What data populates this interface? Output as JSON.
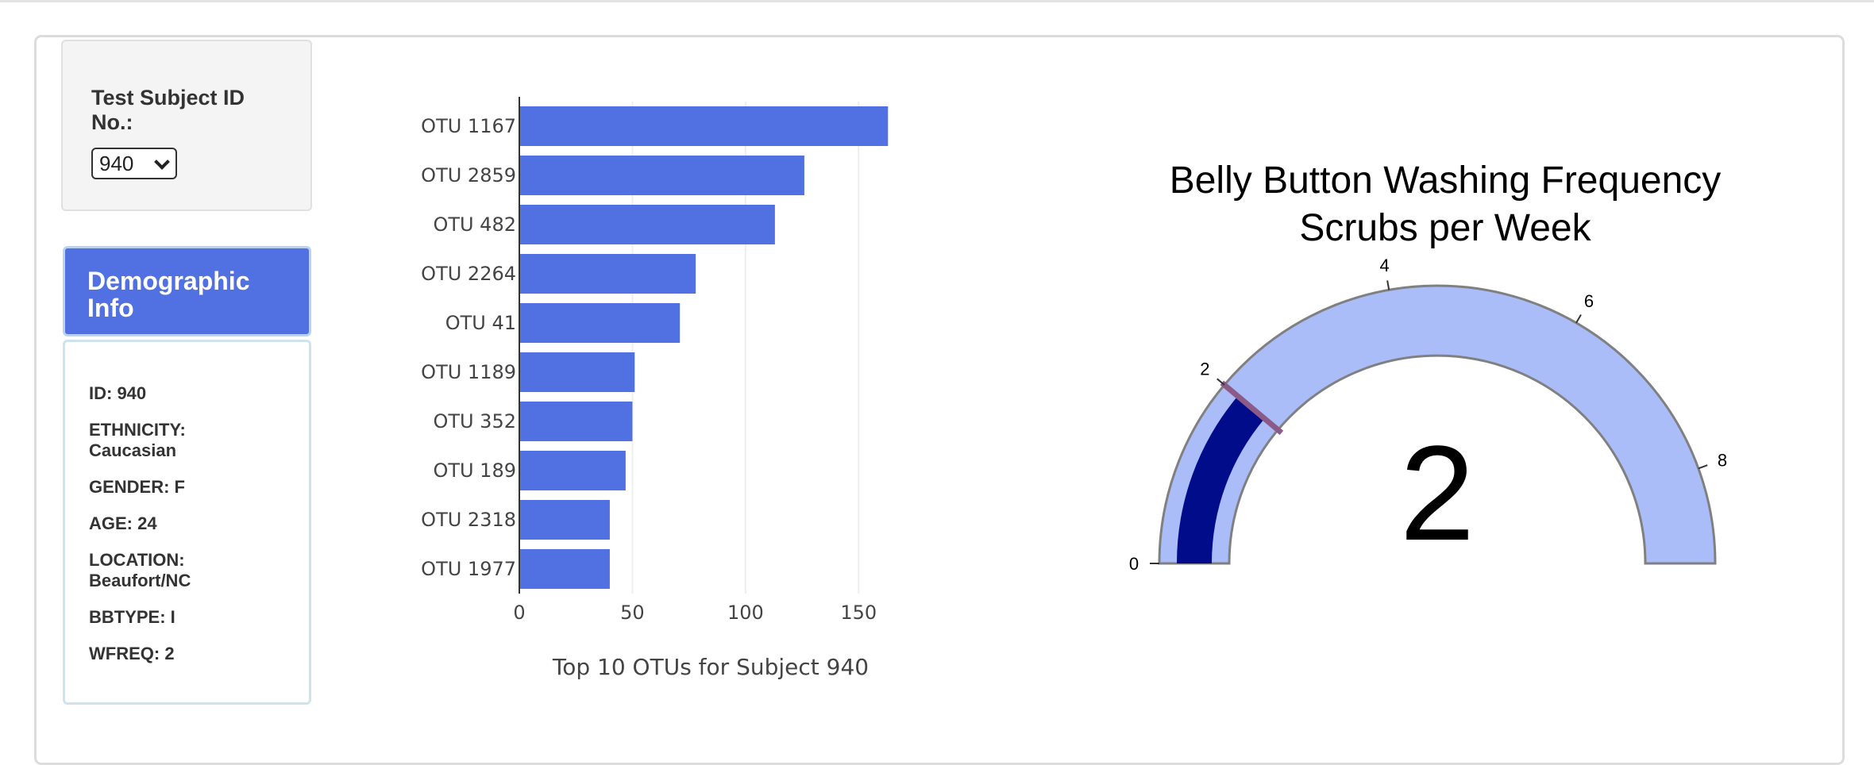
{
  "selector": {
    "label": "Test Subject ID No.:",
    "selected_value": "940"
  },
  "demographic": {
    "header": "Demographic Info",
    "items": [
      "ID: 940",
      "ETHNICITY: Caucasian",
      "GENDER: F",
      "AGE: 24",
      "LOCATION: Beaufort/NC",
      "BBTYPE: I",
      "WFREQ: 2"
    ]
  },
  "chart_data": [
    {
      "type": "bar",
      "orientation": "horizontal",
      "title": "Top 10 OTUs for Subject 940",
      "categories": [
        "OTU 1167",
        "OTU 2859",
        "OTU 482",
        "OTU 2264",
        "OTU 41",
        "OTU 1189",
        "OTU 352",
        "OTU 189",
        "OTU 2318",
        "OTU 1977"
      ],
      "values": [
        163,
        126,
        113,
        78,
        71,
        51,
        50,
        47,
        40,
        40
      ],
      "xlim": [
        0,
        165
      ],
      "xticks": [
        "0",
        "50",
        "100",
        "150"
      ],
      "bar_color": "#5170e2",
      "grid": "vertical"
    },
    {
      "type": "gauge",
      "title": "Belly Button Washing Frequency",
      "subtitle": "Scrubs per Week",
      "value": 2,
      "value_label": "2",
      "range": [
        0,
        9
      ],
      "ticks": [
        "0",
        "2",
        "4",
        "6",
        "8"
      ],
      "bar_color": "#000c8a",
      "track_color": "#aabdf9",
      "threshold_color": "#8b5a87"
    }
  ],
  "colors": {
    "accent": "#5170e2"
  }
}
